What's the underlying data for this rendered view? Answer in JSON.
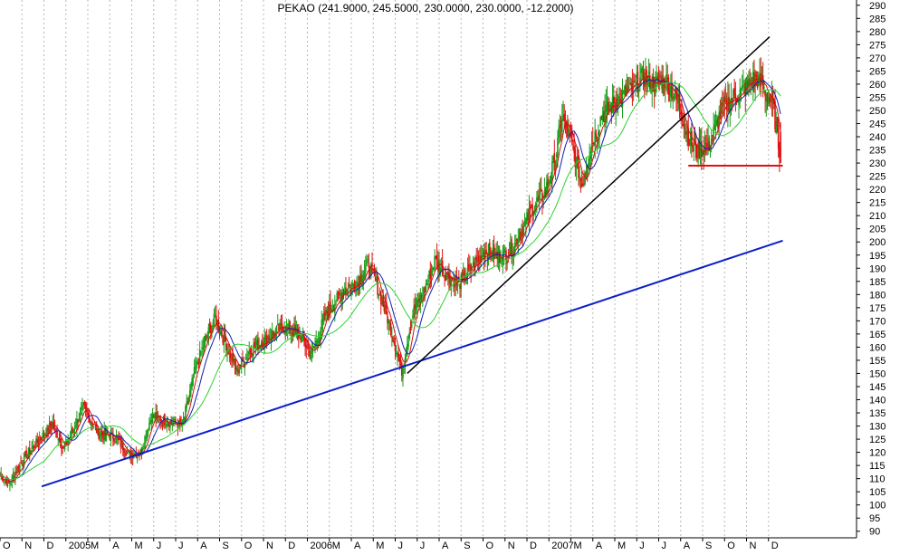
{
  "chart_data": {
    "type": "line",
    "subtype": "candlestick-with-moving-averages",
    "title": "PEKAO (241.9000, 245.5000, 230.0000, 230.0000, -12.2000)",
    "xlabel": "",
    "ylabel": "",
    "x_tick_labels": [
      "O",
      "N",
      "D",
      "2005",
      "M",
      "A",
      "M",
      "J",
      "J",
      "A",
      "S",
      "O",
      "N",
      "D",
      "2006",
      "M",
      "A",
      "M",
      "J",
      "J",
      "A",
      "S",
      "O",
      "N",
      "D",
      "2007",
      "M",
      "A",
      "M",
      "J",
      "J",
      "A",
      "S",
      "O",
      "N",
      "D"
    ],
    "y_ticks": [
      90,
      95,
      100,
      105,
      110,
      115,
      120,
      125,
      130,
      135,
      140,
      145,
      150,
      155,
      160,
      165,
      170,
      175,
      180,
      185,
      190,
      195,
      200,
      205,
      210,
      215,
      220,
      225,
      230,
      235,
      240,
      245,
      250,
      255,
      260,
      265,
      270,
      275,
      280,
      285,
      290
    ],
    "ylim": [
      87.5,
      292
    ],
    "y_axis_position": "right",
    "grid": {
      "vertical": true,
      "horizontal": false
    },
    "colors": {
      "up": "#1a9e1a",
      "down": "#e01010",
      "ma_short": "#d01010",
      "ma_mid": "#1020b0",
      "ma_long": "#30d030",
      "trend_long": "#0b20c8",
      "trend_steep": "#000000",
      "support": "#e01010"
    },
    "price_keypoints": [
      {
        "x": 0,
        "y": 112
      },
      {
        "x": 0.4,
        "y": 108
      },
      {
        "x": 1.1,
        "y": 118
      },
      {
        "x": 1.7,
        "y": 124
      },
      {
        "x": 2.4,
        "y": 131
      },
      {
        "x": 2.9,
        "y": 121
      },
      {
        "x": 3.4,
        "y": 130
      },
      {
        "x": 3.8,
        "y": 137
      },
      {
        "x": 4.5,
        "y": 127
      },
      {
        "x": 5.2,
        "y": 126
      },
      {
        "x": 5.9,
        "y": 119
      },
      {
        "x": 6.4,
        "y": 120
      },
      {
        "x": 6.9,
        "y": 134
      },
      {
        "x": 7.6,
        "y": 132
      },
      {
        "x": 8.3,
        "y": 130
      },
      {
        "x": 8.9,
        "y": 152
      },
      {
        "x": 9.4,
        "y": 164
      },
      {
        "x": 9.8,
        "y": 171
      },
      {
        "x": 10.3,
        "y": 161
      },
      {
        "x": 10.8,
        "y": 151
      },
      {
        "x": 11.4,
        "y": 159
      },
      {
        "x": 12.1,
        "y": 163
      },
      {
        "x": 12.9,
        "y": 168
      },
      {
        "x": 13.7,
        "y": 164
      },
      {
        "x": 14.2,
        "y": 157
      },
      {
        "x": 14.8,
        "y": 172
      },
      {
        "x": 15.6,
        "y": 181
      },
      {
        "x": 16.3,
        "y": 185
      },
      {
        "x": 16.8,
        "y": 192
      },
      {
        "x": 17.3,
        "y": 180
      },
      {
        "x": 17.8,
        "y": 167
      },
      {
        "x": 18.3,
        "y": 151
      },
      {
        "x": 18.8,
        "y": 173
      },
      {
        "x": 19.3,
        "y": 181
      },
      {
        "x": 19.8,
        "y": 193
      },
      {
        "x": 20.3,
        "y": 188
      },
      {
        "x": 20.9,
        "y": 184
      },
      {
        "x": 21.5,
        "y": 190
      },
      {
        "x": 22.1,
        "y": 197
      },
      {
        "x": 22.7,
        "y": 194
      },
      {
        "x": 23.3,
        "y": 197
      },
      {
        "x": 23.8,
        "y": 205
      },
      {
        "x": 24.3,
        "y": 214
      },
      {
        "x": 24.8,
        "y": 218
      },
      {
        "x": 25.3,
        "y": 232
      },
      {
        "x": 25.6,
        "y": 248
      },
      {
        "x": 26.0,
        "y": 238
      },
      {
        "x": 26.5,
        "y": 222
      },
      {
        "x": 26.9,
        "y": 236
      },
      {
        "x": 27.4,
        "y": 248
      },
      {
        "x": 27.9,
        "y": 252
      },
      {
        "x": 28.4,
        "y": 256
      },
      {
        "x": 28.8,
        "y": 258
      },
      {
        "x": 29.3,
        "y": 263
      },
      {
        "x": 29.8,
        "y": 260
      },
      {
        "x": 30.3,
        "y": 262
      },
      {
        "x": 30.9,
        "y": 253
      },
      {
        "x": 31.3,
        "y": 241
      },
      {
        "x": 31.7,
        "y": 234
      },
      {
        "x": 32.3,
        "y": 237
      },
      {
        "x": 32.9,
        "y": 251
      },
      {
        "x": 33.4,
        "y": 255
      },
      {
        "x": 33.9,
        "y": 258
      },
      {
        "x": 34.4,
        "y": 263
      },
      {
        "x": 34.8,
        "y": 258
      },
      {
        "x": 35.2,
        "y": 252
      },
      {
        "x": 35.55,
        "y": 232
      }
    ],
    "trendlines": [
      {
        "color": "blue",
        "points": [
          {
            "x": 1.9,
            "y": 107
          },
          {
            "x": 35.65,
            "y": 200.5
          }
        ]
      },
      {
        "color": "black",
        "points": [
          {
            "x": 18.55,
            "y": 150
          },
          {
            "x": 35.05,
            "y": 278
          }
        ]
      }
    ],
    "support_line": {
      "y": 229,
      "x_start": 31.35,
      "x_end": 35.65
    }
  }
}
